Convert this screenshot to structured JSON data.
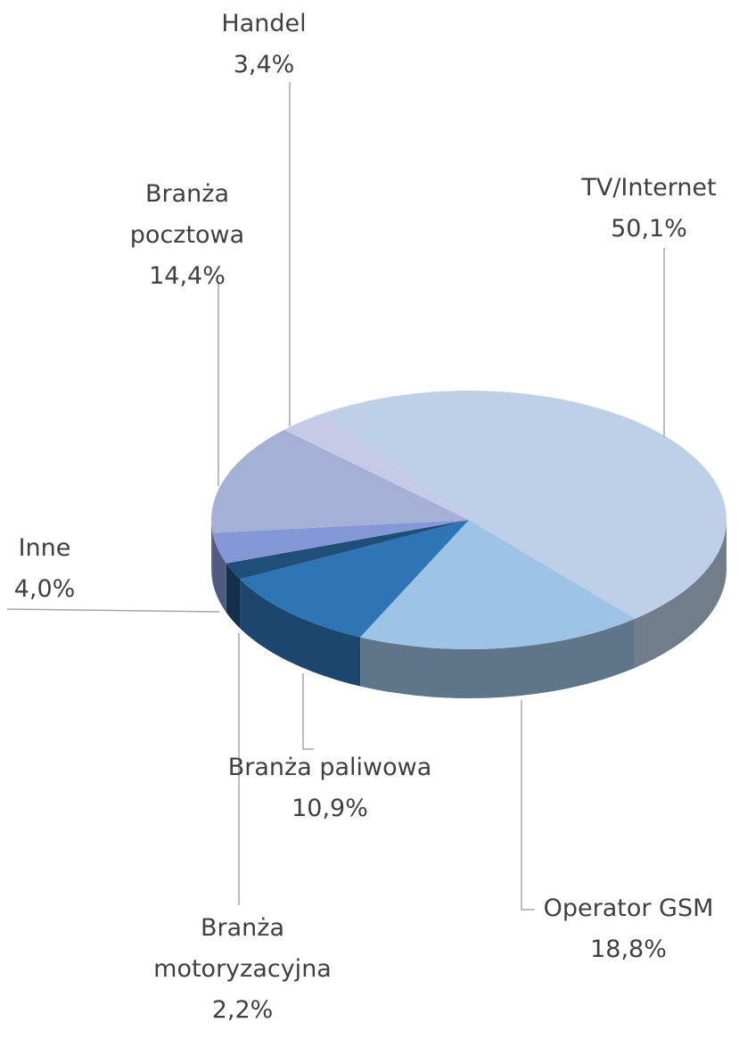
{
  "chart_data": {
    "type": "pie3d",
    "categories": [
      "TV/Internet",
      "Operator GSM",
      "Branża paliwowa",
      "Branża motoryzacyjna",
      "Inne",
      "Branża pocztowa",
      "Handel"
    ],
    "values": [
      50.1,
      18.8,
      10.9,
      2.2,
      4.0,
      14.4,
      3.4
    ],
    "value_labels": [
      "50,1%",
      "18,8%",
      "10,9%",
      "2,2%",
      "4,0%",
      "14,4%",
      "3,4%"
    ],
    "colors": [
      "#bdd0e8",
      "#9dc3e6",
      "#2e75b6",
      "#1f4e79",
      "#8497d6",
      "#a5b0d6",
      "#c5cbe6"
    ]
  }
}
